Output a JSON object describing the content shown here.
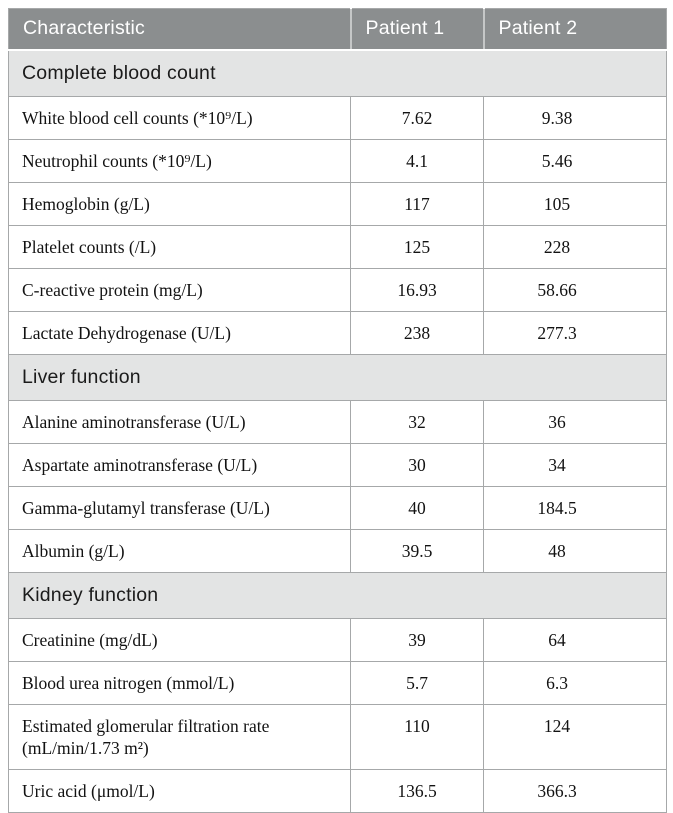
{
  "colors": {
    "header_bg": "#8b8e8f",
    "header_text": "#ffffff",
    "section_bg": "#e3e4e4",
    "border": "#a6a8a9",
    "body_text": "#121212",
    "section_text": "#1b1b1b"
  },
  "table": {
    "columns": [
      "Characteristic",
      "Patient 1",
      "Patient 2"
    ],
    "sections": [
      {
        "title": "Complete blood count",
        "rows": [
          {
            "label": "White blood cell counts (*10⁹/L)",
            "patient1": "7.62",
            "patient2": "9.38"
          },
          {
            "label": "Neutrophil counts (*10⁹/L)",
            "patient1": "4.1",
            "patient2": "5.46"
          },
          {
            "label": "Hemoglobin (g/L)",
            "patient1": "117",
            "patient2": "105"
          },
          {
            "label": "Platelet counts (/L)",
            "patient1": "125",
            "patient2": "228"
          },
          {
            "label": "C-reactive protein (mg/L)",
            "patient1": "16.93",
            "patient2": "58.66"
          },
          {
            "label": "Lactate Dehydrogenase (U/L)",
            "patient1": "238",
            "patient2": "277.3"
          }
        ]
      },
      {
        "title": "Liver function",
        "rows": [
          {
            "label": "Alanine aminotransferase (U/L)",
            "patient1": "32",
            "patient2": "36"
          },
          {
            "label": "Aspartate aminotransferase (U/L)",
            "patient1": "30",
            "patient2": "34"
          },
          {
            "label": "Gamma-glutamyl transferase (U/L)",
            "patient1": "40",
            "patient2": "184.5"
          },
          {
            "label": "Albumin (g/L)",
            "patient1": "39.5",
            "patient2": "48"
          }
        ]
      },
      {
        "title": "Kidney function",
        "rows": [
          {
            "label": "Creatinine (mg/dL)",
            "patient1": "39",
            "patient2": "64"
          },
          {
            "label": "Blood urea nitrogen (mmol/L)",
            "patient1": "5.7",
            "patient2": "6.3"
          },
          {
            "label": "Estimated glomerular filtration rate (mL/min/1.73 m²)",
            "patient1": "110",
            "patient2": "124"
          },
          {
            "label": "Uric acid (μmol/L)",
            "patient1": "136.5",
            "patient2": "366.3"
          }
        ]
      }
    ]
  }
}
